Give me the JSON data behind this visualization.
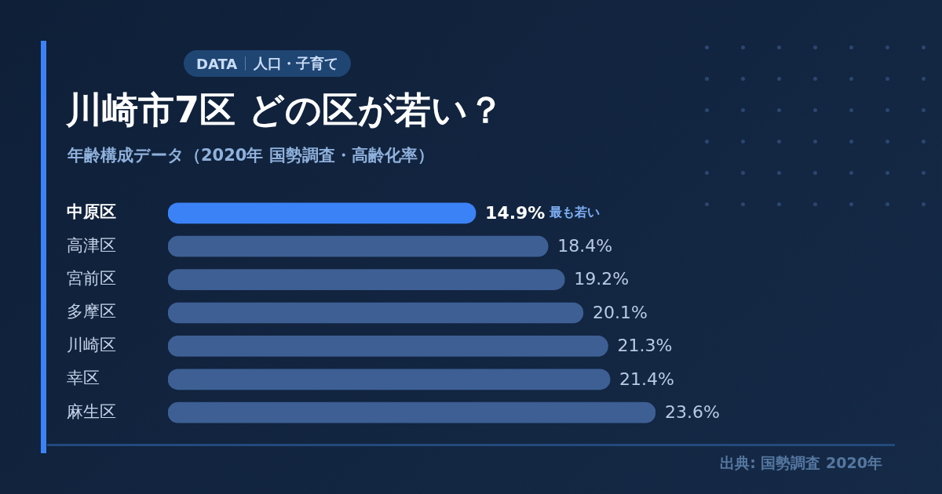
{
  "chart_data": {
    "type": "bar",
    "orientation": "horizontal",
    "title": "川崎市7区 どの区が若い？",
    "subtitle": "年齢構成データ（2020年 国勢調査・高齢化率）",
    "categories": [
      "中原区",
      "高津区",
      "宮前区",
      "多摩区",
      "川崎区",
      "幸区",
      "麻生区"
    ],
    "values": [
      14.9,
      18.4,
      19.2,
      20.1,
      21.3,
      21.4,
      23.6
    ],
    "colors": [
      "#3b82f6",
      "#3d5f94",
      "#3d5f94",
      "#3d5f94",
      "#3d5f94",
      "#3d5f94",
      "#3d5f94"
    ],
    "value_labels": [
      "14.9%",
      "18.4%",
      "19.2%",
      "20.1%",
      "21.3%",
      "21.4%",
      "23.6%"
    ],
    "annotations": [
      "DATA",
      "人口・子育て",
      "最も若い",
      "出典: 国勢調査 2020年"
    ],
    "legend": false
  }
}
